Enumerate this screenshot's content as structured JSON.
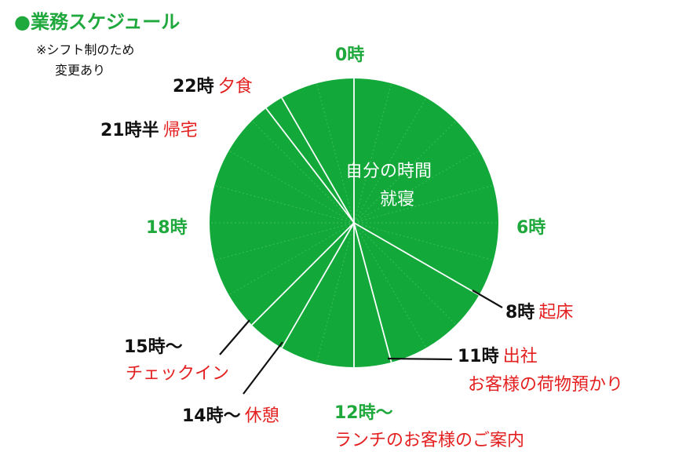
{
  "title": "●業務スケジュール",
  "note_line1": "※シフト制のため",
  "note_line2": "変更あり",
  "center_line1": "自分の時間",
  "center_line2": "就寝",
  "hours": {
    "h0": "0時",
    "h6": "6時",
    "h18": "18時"
  },
  "events": {
    "e8": {
      "time": "8時",
      "label": "起床"
    },
    "e11": {
      "time": "11時",
      "label1": "出社",
      "label2": "お客様の荷物預かり"
    },
    "e12": {
      "time": "12時～",
      "label": "ランチのお客様のご案内"
    },
    "e14": {
      "time": "14時～",
      "label": "休憩"
    },
    "e15": {
      "time": "15時～",
      "label": "チェックイン"
    },
    "e21": {
      "time": "21時半",
      "label": "帰宅"
    },
    "e22": {
      "time": "22時",
      "label": "夕食"
    }
  },
  "colors": {
    "pie": "#12a93a",
    "green_text": "#1fa83c",
    "red_text": "#e41f1f"
  },
  "chart_data": {
    "type": "pie",
    "segment_boundaries_hours": [
      0,
      8,
      11,
      12,
      14,
      15,
      21.5,
      22
    ]
  }
}
